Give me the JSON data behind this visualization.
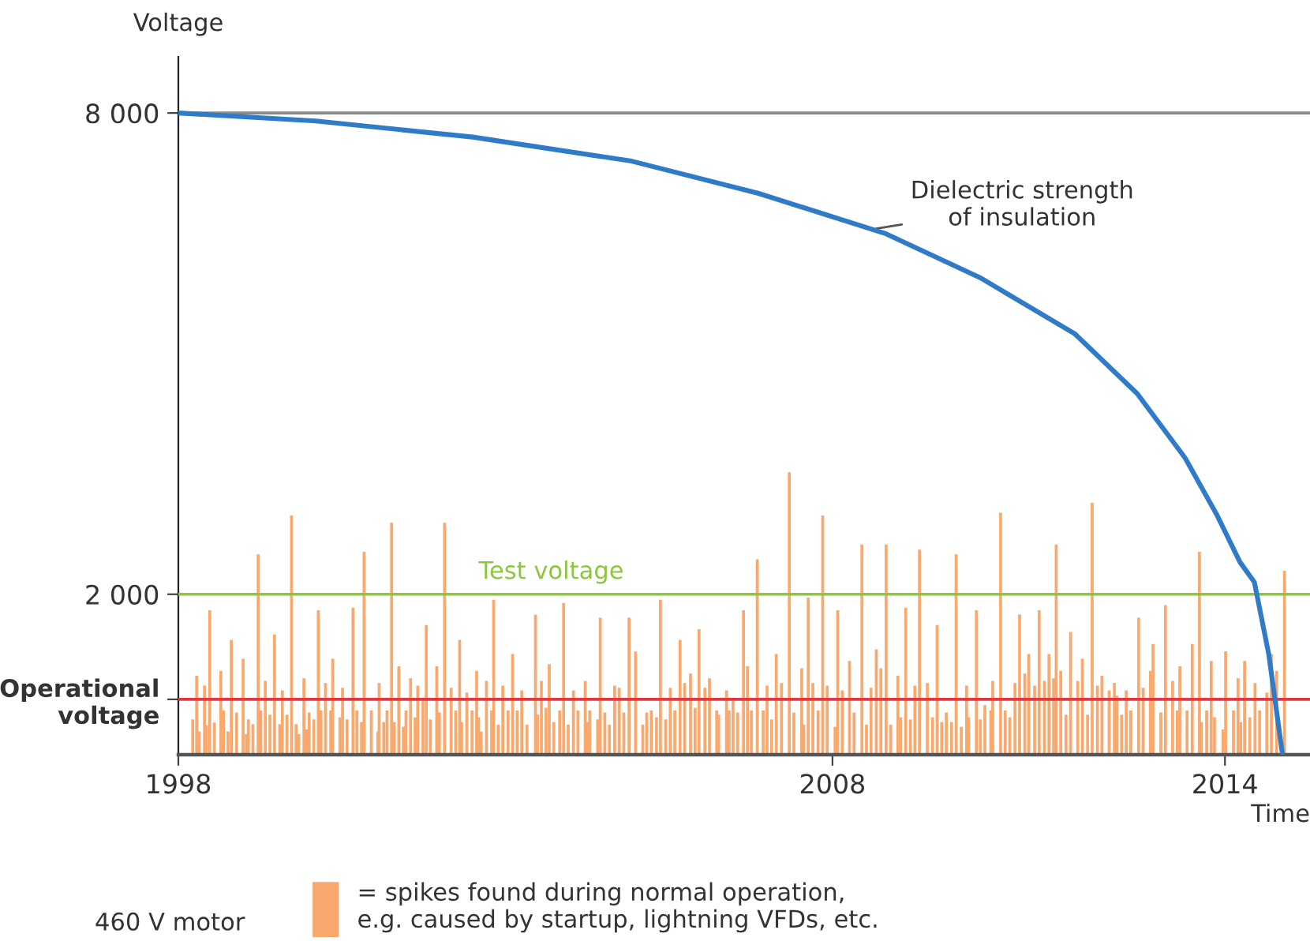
{
  "chart_data": {
    "type": "line",
    "ylabel": "Voltage",
    "xlabel": "Time",
    "xlim": [
      1998,
      2015.3
    ],
    "xticks": [
      1998,
      2008,
      2014
    ],
    "ylim": [
      0,
      8700
    ],
    "yticks": [
      {
        "value": 8000,
        "label": "8 000"
      },
      {
        "value": 2000,
        "label": "2 000"
      },
      {
        "value": 690,
        "label": "Operational\nvoltage"
      }
    ],
    "grid": false,
    "legend": "bottom",
    "marker": "none",
    "line_style": "solid",
    "series": [
      {
        "color": "#2f7bc8",
        "x": [
          1998,
          2000.1,
          2002.5,
          2004.93,
          2006.86,
          2008.8,
          2010.25,
          2011.7,
          2012.66,
          2013.39,
          2013.87,
          2014.23,
          2014.45,
          2014.67,
          2014.88
        ],
        "values": [
          8000,
          7900,
          7700,
          7400,
          7000,
          6500,
          5950,
          5250,
          4500,
          3700,
          3000,
          2400,
          2150,
          1250,
          0
        ]
      },
      {
        "type": "bar",
        "name": "= spikes found during normal operation,\ne.g. caused by startup, lightning VFDs, etc.",
        "color": "#f9a86e",
        "x": [
          1998.22,
          1998.28,
          1998.32,
          1998.4,
          1998.43,
          1998.48,
          1998.55,
          1998.65,
          1998.69,
          1998.76,
          1998.81,
          1998.89,
          1998.99,
          1999.04,
          1999.07,
          1999.14,
          1999.22,
          1999.26,
          1999.33,
          1999.4,
          1999.47,
          1999.55,
          1999.59,
          1999.66,
          1999.73,
          1999.8,
          1999.84,
          1999.92,
          1999.96,
          2000.0,
          2000.07,
          2000.14,
          2000.18,
          2000.25,
          2000.33,
          2000.36,
          2000.47,
          2000.51,
          2000.58,
          2000.67,
          2000.73,
          2000.8,
          2000.84,
          2000.95,
          2001.05,
          2001.07,
          2001.14,
          2001.19,
          2001.26,
          2001.3,
          2001.37,
          2001.44,
          2001.48,
          2001.55,
          2001.62,
          2001.66,
          2001.74,
          2001.79,
          2001.85,
          2001.95,
          2001.99,
          2002.07,
          2002.17,
          2002.24,
          2002.3,
          2002.33,
          2002.41,
          2002.49,
          2002.56,
          2002.59,
          2002.63,
          2002.71,
          2002.79,
          2002.82,
          2002.89,
          2002.96,
          2003.04,
          2003.11,
          2003.18,
          2003.25,
          2003.33,
          2003.46,
          2003.49,
          2003.55,
          2003.62,
          2003.67,
          2003.74,
          2003.83,
          2003.89,
          2003.96,
          2004.04,
          2004.11,
          2004.22,
          2004.26,
          2004.29,
          2004.41,
          2004.45,
          2004.52,
          2004.59,
          2004.67,
          2004.74,
          2004.81,
          2004.89,
          2004.99,
          2005.1,
          2005.16,
          2005.23,
          2005.31,
          2005.37,
          2005.45,
          2005.52,
          2005.59,
          2005.67,
          2005.74,
          2005.83,
          2005.9,
          2005.96,
          2006.05,
          2006.12,
          2006.23,
          2006.26,
          2006.38,
          2006.42,
          2006.48,
          2006.55,
          2006.64,
          2006.7,
          2006.76,
          2006.85,
          2006.94,
          2007.0,
          2007.07,
          2007.14,
          2007.22,
          2007.34,
          2007.41,
          2007.53,
          2007.56,
          2007.63,
          2007.7,
          2007.78,
          2007.85,
          2007.92,
          2008.04,
          2008.08,
          2008.15,
          2008.26,
          2008.33,
          2008.45,
          2008.52,
          2008.59,
          2008.67,
          2008.74,
          2008.82,
          2008.89,
          2009.0,
          2009.04,
          2009.12,
          2009.19,
          2009.26,
          2009.33,
          2009.45,
          2009.53,
          2009.6,
          2009.67,
          2009.74,
          2009.82,
          2009.89,
          2009.97,
          2010.05,
          2010.08,
          2010.2,
          2010.26,
          2010.33,
          2010.42,
          2010.45,
          2010.57,
          2010.64,
          2010.71,
          2010.79,
          2010.86,
          2010.94,
          2011.0,
          2011.09,
          2011.16,
          2011.24,
          2011.31,
          2011.38,
          2011.42,
          2011.49,
          2011.57,
          2011.64,
          2011.75,
          2011.82,
          2011.9,
          2011.97,
          2012.05,
          2012.12,
          2012.23,
          2012.31,
          2012.35,
          2012.42,
          2012.49,
          2012.56,
          2012.68,
          2012.75,
          2012.86,
          2012.9,
          2013.02,
          2013.09,
          2013.2,
          2013.27,
          2013.31,
          2013.42,
          2013.5,
          2013.61,
          2013.64,
          2013.72,
          2013.79,
          2013.84,
          2013.97,
          2014.01,
          2014.13,
          2014.2,
          2014.24,
          2014.3,
          2014.38,
          2014.46,
          2014.53,
          2014.64,
          2014.71,
          2014.79,
          2014.91
        ],
        "values": [
          440,
          985,
          289,
          861,
          368,
          1800,
          401,
          1045,
          552,
          289,
          1432,
          526,
          1196,
          256,
          440,
          381,
          2497,
          552,
          920,
          499,
          1498,
          381,
          802,
          499,
          2983,
          381,
          256,
          953,
          315,
          526,
          440,
          1800,
          552,
          894,
          552,
          1196,
          466,
          834,
          440,
          1833,
          552,
          407,
          2529,
          552,
          289,
          894,
          407,
          552,
          2891,
          407,
          1104,
          348,
          552,
          953,
          466,
          861,
          677,
          1616,
          440,
          1104,
          526,
          2891,
          834,
          552,
          1432,
          407,
          775,
          552,
          1045,
          466,
          289,
          920,
          552,
          1932,
          374,
          861,
          552,
          1255,
          552,
          802,
          374,
          1748,
          499,
          920,
          585,
          1130,
          407,
          552,
          1892,
          374,
          802,
          552,
          920,
          407,
          552,
          440,
          1708,
          526,
          374,
          861,
          834,
          526,
          1708,
          1288,
          374,
          526,
          552,
          466,
          1932,
          440,
          834,
          552,
          1432,
          894,
          1012,
          585,
          1564,
          834,
          953,
          552,
          499,
          802,
          552,
          677,
          526,
          1800,
          1104,
          552,
          2437,
          552,
          861,
          440,
          1255,
          894,
          3522,
          526,
          1077,
          374,
          1958,
          894,
          552,
          2983,
          861,
          348,
          1800,
          802,
          1169,
          526,
          2621,
          374,
          834,
          1314,
          1077,
          2621,
          374,
          985,
          466,
          1833,
          440,
          861,
          2556,
          894,
          466,
          1616,
          407,
          526,
          407,
          2497,
          348,
          861,
          466,
          1800,
          440,
          618,
          552,
          920,
          3016,
          552,
          466,
          894,
          1748,
          1012,
          1255,
          861,
          1800,
          920,
          1255,
          953,
          2621,
          1045,
          499,
          1531,
          920,
          1196,
          499,
          3140,
          861,
          985,
          802,
          894,
          736,
          499,
          802,
          552,
          1708,
          834,
          1045,
          1380,
          526,
          1866,
          920,
          552,
          1104,
          552,
          1380,
          2529,
          407,
          552,
          1169,
          466,
          315,
          1288,
          552,
          953,
          407,
          1169,
          466,
          894,
          552,
          775,
          1255,
          1045,
          2293
        ]
      }
    ],
    "ref_lines": [
      {
        "axis": "y",
        "value": 8000,
        "color": "#8a8a8a"
      },
      {
        "axis": "y",
        "value": 2000,
        "label": "Test voltage",
        "color": "#8cc63f"
      },
      {
        "axis": "y",
        "value": 690,
        "color": "#e0383e"
      }
    ],
    "annotations": [
      {
        "text": "Dielectric strength\nof insulation",
        "x": 2008.6,
        "y": 6550
      },
      "460 V motor"
    ]
  }
}
